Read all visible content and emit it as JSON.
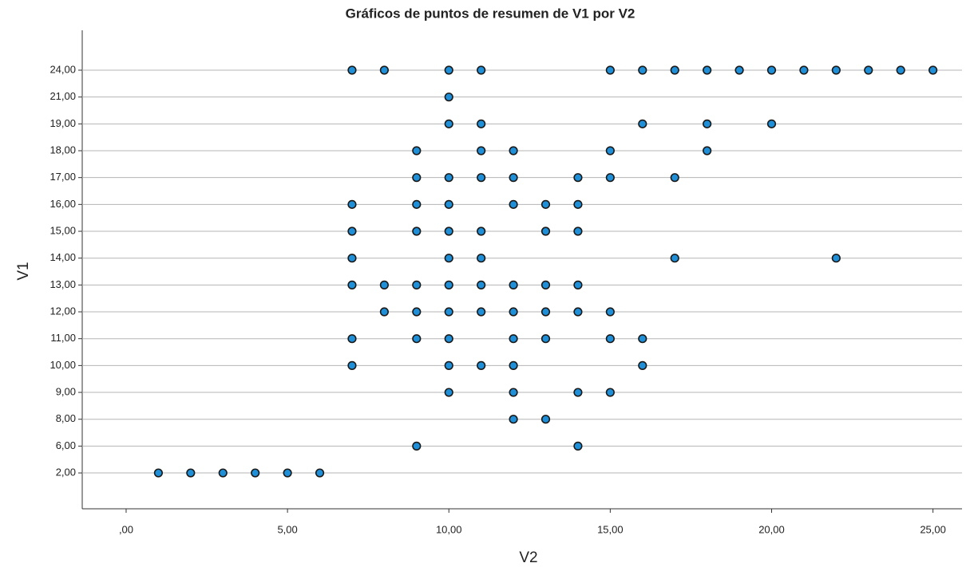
{
  "chart_data": {
    "type": "dot",
    "title": "Gráficos de puntos de resumen de V1 por V2",
    "x_label": "V2",
    "y_label": "V1",
    "color": "#1f8fd8",
    "grid": true,
    "categories": [
      "24,00",
      "21,00",
      "19,00",
      "18,00",
      "17,00",
      "16,00",
      "15,00",
      "14,00",
      "13,00",
      "12,00",
      "11,00",
      "10,00",
      "9,00",
      "8,00",
      "6,00",
      "2,00"
    ],
    "values": [
      [
        7,
        8,
        10,
        11,
        15,
        16,
        17,
        18,
        19,
        20,
        21,
        22,
        23,
        24,
        25
      ],
      [
        10
      ],
      [
        10,
        11,
        16,
        18,
        20
      ],
      [
        9,
        11,
        12,
        15,
        18
      ],
      [
        9,
        10,
        11,
        12,
        14,
        15,
        17
      ],
      [
        7,
        9,
        10,
        12,
        13,
        14
      ],
      [
        7,
        9,
        10,
        11,
        13,
        14
      ],
      [
        7,
        10,
        11,
        17,
        22
      ],
      [
        7,
        8,
        9,
        10,
        11,
        12,
        13,
        14
      ],
      [
        8,
        9,
        10,
        11,
        12,
        13,
        14,
        15
      ],
      [
        7,
        9,
        10,
        12,
        13,
        15,
        16
      ],
      [
        7,
        10,
        11,
        12,
        16
      ],
      [
        10,
        12,
        14,
        15
      ],
      [
        12,
        13
      ],
      [
        9,
        14
      ],
      [
        1,
        2,
        3,
        4,
        5,
        6
      ]
    ],
    "xlim": [
      -1.36,
      25.9
    ],
    "xticks": [
      {
        "value": 0,
        "label": ",00"
      },
      {
        "value": 5,
        "label": "5,00"
      },
      {
        "value": 10,
        "label": "10,00"
      },
      {
        "value": 15,
        "label": "15,00"
      },
      {
        "value": 20,
        "label": "20,00"
      },
      {
        "value": 25,
        "label": "25,00"
      }
    ]
  }
}
